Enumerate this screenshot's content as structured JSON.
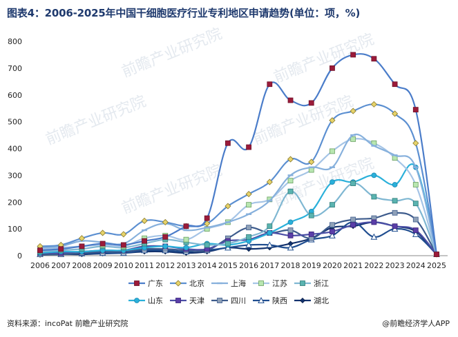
{
  "title": "图表4：2006-2025年中国干细胞医疗行业专利地区申请趋势(单位：项，%)",
  "footer": {
    "source": "资料来源：incoPat 前瞻产业研究院",
    "brand": "@前瞻经济学人APP"
  },
  "watermark": "前瞻产业研究院",
  "chart_data": {
    "type": "line",
    "title": "图表4：2006-2025年中国干细胞医疗行业专利地区申请趋势(单位：项，%)",
    "xlabel": "",
    "ylabel": "",
    "ylim": [
      0,
      800
    ],
    "yticks": [
      0,
      100,
      200,
      300,
      400,
      500,
      600,
      700,
      800
    ],
    "grid": false,
    "legend_position": "bottom",
    "categories": [
      "2006",
      "2007",
      "2008",
      "2009",
      "2010",
      "2011",
      "2012",
      "2013",
      "2014",
      "2015",
      "2016",
      "2017",
      "2018",
      "2019",
      "2020",
      "2021",
      "2022",
      "2023",
      "2024",
      "2025"
    ],
    "series": [
      {
        "name": "广东",
        "color": "#4a7cc9",
        "marker": "square-red",
        "values": [
          20,
          25,
          35,
          45,
          40,
          55,
          70,
          110,
          140,
          420,
          405,
          640,
          580,
          570,
          700,
          750,
          735,
          640,
          545,
          5
        ]
      },
      {
        "name": "北京",
        "color": "#5b8fd1",
        "marker": "diamond",
        "values": [
          35,
          40,
          65,
          85,
          80,
          130,
          125,
          110,
          120,
          185,
          230,
          275,
          360,
          350,
          505,
          540,
          565,
          530,
          420,
          5
        ]
      },
      {
        "name": "上海",
        "color": "#86b0dc",
        "marker": "dash",
        "values": [
          30,
          35,
          55,
          50,
          45,
          95,
          120,
          95,
          105,
          125,
          155,
          205,
          300,
          330,
          330,
          450,
          410,
          375,
          330,
          5
        ]
      },
      {
        "name": "江苏",
        "color": "#a5c4e6",
        "marker": "square",
        "values": [
          25,
          30,
          35,
          40,
          35,
          65,
          75,
          60,
          100,
          125,
          190,
          210,
          280,
          320,
          390,
          435,
          420,
          365,
          265,
          5
        ]
      },
      {
        "name": "浙江",
        "color": "#7fb7d2",
        "marker": "square-x",
        "values": [
          15,
          20,
          25,
          35,
          30,
          45,
          60,
          50,
          40,
          45,
          70,
          110,
          240,
          150,
          190,
          270,
          220,
          205,
          195,
          5
        ]
      },
      {
        "name": "山东",
        "color": "#2ab0da",
        "marker": "circle",
        "values": [
          10,
          15,
          15,
          20,
          20,
          30,
          35,
          30,
          45,
          40,
          55,
          85,
          125,
          165,
          275,
          275,
          300,
          265,
          330,
          5
        ]
      },
      {
        "name": "天津",
        "color": "#4b4ea6",
        "marker": "square-purple",
        "values": [
          10,
          10,
          15,
          20,
          20,
          35,
          35,
          25,
          25,
          55,
          60,
          85,
          75,
          80,
          90,
          115,
          125,
          110,
          95,
          5
        ]
      },
      {
        "name": "四川",
        "color": "#3d5b8c",
        "marker": "square-grey",
        "values": [
          5,
          5,
          10,
          15,
          15,
          25,
          25,
          20,
          20,
          65,
          105,
          85,
          95,
          65,
          115,
          135,
          140,
          160,
          135,
          5
        ]
      },
      {
        "name": "陕西",
        "color": "#1f4d8f",
        "marker": "triangle",
        "values": [
          5,
          5,
          8,
          10,
          10,
          20,
          20,
          15,
          20,
          30,
          40,
          40,
          30,
          60,
          75,
          125,
          70,
          100,
          80,
          5
        ]
      },
      {
        "name": "湖北",
        "color": "#12326e",
        "marker": "diamond-dark",
        "values": [
          3,
          5,
          5,
          8,
          10,
          15,
          15,
          10,
          15,
          30,
          25,
          30,
          45,
          65,
          105,
          110,
          125,
          110,
          90,
          5
        ]
      }
    ]
  }
}
